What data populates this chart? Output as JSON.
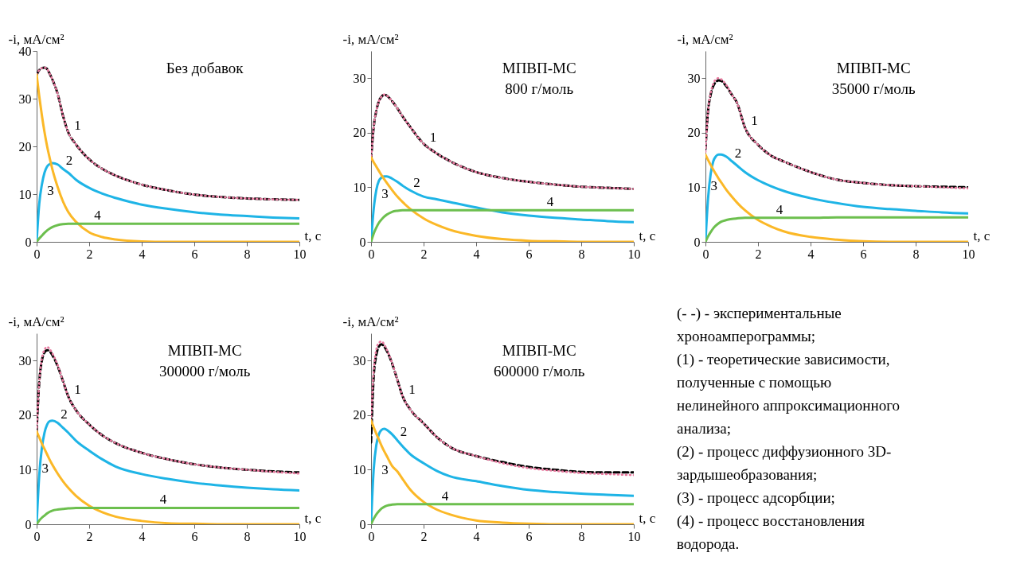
{
  "chart_data": [
    {
      "type": "line",
      "annotations": [
        "Без добавок"
      ],
      "xlabel": "t, с",
      "ylabel": "-i, мА/см²",
      "xlim": [
        0,
        10
      ],
      "xticks": [
        0,
        2,
        4,
        6,
        8,
        10
      ],
      "ylim": [
        0,
        40
      ],
      "yticks": [
        0,
        10,
        20,
        30,
        40
      ],
      "grid": false,
      "x": [
        0,
        0.1,
        0.2,
        0.3,
        0.4,
        0.5,
        0.6,
        0.8,
        1,
        1.2,
        1.5,
        2,
        2.5,
        3,
        4,
        5,
        6,
        7,
        8,
        9,
        10
      ],
      "series": [
        {
          "color": "#000000",
          "line_style": "dashed",
          "values": [
            35,
            36,
            36.4,
            36.5,
            36.2,
            35.2,
            34,
            31,
            26.5,
            23,
            20.4,
            17.3,
            15.3,
            13.9,
            12,
            10.8,
            9.9,
            9.4,
            9.1,
            8.9,
            8.8
          ]
        },
        {
          "name": "1",
          "color": "#e8799f",
          "line_style": "dotted",
          "values": [
            35,
            36,
            36.4,
            36.5,
            36.2,
            35.2,
            34,
            31,
            26.5,
            23,
            20.4,
            17.3,
            15.3,
            13.9,
            12,
            10.8,
            9.9,
            9.4,
            9.1,
            8.9,
            8.8
          ]
        },
        {
          "name": "2",
          "color": "#1eb4e6",
          "values": [
            0,
            8,
            12,
            14.5,
            15.8,
            16.3,
            16.5,
            16.2,
            15.3,
            14.5,
            13,
            11.3,
            10.1,
            9.2,
            7.8,
            6.9,
            6.2,
            5.7,
            5.4,
            5.1,
            4.9
          ]
        },
        {
          "name": "3",
          "color": "#fbb827",
          "values": [
            35,
            30.5,
            26.5,
            23,
            20,
            17.5,
            15.2,
            11.5,
            8.5,
            6.3,
            4.2,
            2,
            1,
            0.5,
            0.1,
            0,
            0,
            0,
            0,
            0,
            0
          ]
        },
        {
          "name": "4",
          "color": "#6cbf4e",
          "values": [
            0,
            0.7,
            1.3,
            1.9,
            2.4,
            2.8,
            3.1,
            3.5,
            3.7,
            3.8,
            3.8,
            3.8,
            3.8,
            3.8,
            3.8,
            3.8,
            3.8,
            3.8,
            3.8,
            3.8,
            3.8
          ]
        }
      ]
    },
    {
      "type": "line",
      "annotations": [
        "МПВП-МС",
        "800 г/моль"
      ],
      "xlabel": "t, с",
      "ylabel": "-i, мА/см²",
      "xlim": [
        0,
        10
      ],
      "xticks": [
        0,
        2,
        4,
        6,
        8,
        10
      ],
      "ylim": [
        0,
        35
      ],
      "yticks": [
        0,
        10,
        20,
        30
      ],
      "grid": false,
      "x": [
        0,
        0.1,
        0.2,
        0.3,
        0.4,
        0.5,
        0.6,
        0.8,
        1,
        1.2,
        1.5,
        2,
        2.5,
        3,
        4,
        5,
        6,
        7,
        8,
        9,
        10
      ],
      "series": [
        {
          "color": "#000000",
          "line_style": "dashed",
          "values": [
            15,
            21,
            24,
            25.8,
            26.6,
            27,
            26.8,
            25.8,
            24.5,
            23,
            21,
            18,
            16.2,
            14.8,
            12.8,
            11.7,
            11,
            10.5,
            10.1,
            9.9,
            9.7
          ]
        },
        {
          "name": "1",
          "color": "#e8799f",
          "line_style": "dotted",
          "values": [
            15,
            21,
            24,
            25.8,
            26.6,
            27,
            26.8,
            25.8,
            24.5,
            23,
            21,
            18,
            16.2,
            14.8,
            12.8,
            11.7,
            11,
            10.5,
            10.1,
            9.9,
            9.7
          ]
        },
        {
          "name": "2",
          "color": "#1eb4e6",
          "values": [
            0,
            6,
            9.5,
            11.2,
            11.8,
            12,
            12,
            11.6,
            11,
            10.3,
            9.4,
            8.3,
            7.8,
            7.3,
            6.3,
            5.4,
            4.8,
            4.4,
            4.1,
            3.8,
            3.6
          ]
        },
        {
          "name": "3",
          "color": "#fbb827",
          "values": [
            15.5,
            14.6,
            13.8,
            13,
            12.2,
            11.5,
            10.8,
            9.5,
            8.3,
            7.3,
            6,
            4.3,
            3.1,
            2.2,
            1.1,
            0.5,
            0.2,
            0.1,
            0,
            0,
            0
          ]
        },
        {
          "name": "4",
          "color": "#6cbf4e",
          "values": [
            0,
            1.5,
            2.6,
            3.5,
            4.1,
            4.6,
            5,
            5.5,
            5.7,
            5.8,
            5.8,
            5.8,
            5.8,
            5.8,
            5.8,
            5.8,
            5.8,
            5.8,
            5.8,
            5.8,
            5.8
          ]
        }
      ]
    },
    {
      "type": "line",
      "annotations": [
        "МПВП-МС",
        "35000 г/моль"
      ],
      "xlabel": "t, с",
      "ylabel": "-i, мА/см²",
      "xlim": [
        0,
        10
      ],
      "xticks": [
        0,
        2,
        4,
        6,
        8,
        10
      ],
      "ylim": [
        0,
        35
      ],
      "yticks": [
        0,
        10,
        20,
        30
      ],
      "grid": false,
      "x": [
        0,
        0.1,
        0.2,
        0.3,
        0.4,
        0.5,
        0.6,
        0.8,
        1,
        1.2,
        1.5,
        2,
        2.5,
        3,
        4,
        5,
        6,
        7,
        8,
        9,
        10
      ],
      "series": [
        {
          "color": "#000000",
          "line_style": "dashed",
          "values": [
            17,
            24,
            27,
            28.6,
            29.3,
            29.6,
            29.5,
            28.5,
            27,
            25.5,
            21,
            17.8,
            15.8,
            14.7,
            12.8,
            11.4,
            10.8,
            10.4,
            10.2,
            10.1,
            10
          ]
        },
        {
          "name": "1",
          "color": "#e8799f",
          "line_style": "dotted",
          "values": [
            16.5,
            24,
            27.3,
            29,
            29.8,
            30,
            29.8,
            28.7,
            27,
            25.5,
            21,
            17.8,
            15.8,
            14.7,
            12.8,
            11.4,
            10.8,
            10.4,
            10.2,
            10,
            9.8
          ]
        },
        {
          "name": "2",
          "color": "#1eb4e6",
          "values": [
            0,
            8,
            12.5,
            14.8,
            15.7,
            16,
            16,
            15.6,
            14.8,
            14,
            12.8,
            11.3,
            10.2,
            9.3,
            8,
            7.1,
            6.4,
            6,
            5.7,
            5.4,
            5.2
          ]
        },
        {
          "name": "3",
          "color": "#fbb827",
          "values": [
            16,
            15,
            14.1,
            13.2,
            12.4,
            11.6,
            10.9,
            9.5,
            8.3,
            7.2,
            5.8,
            4,
            2.8,
            1.9,
            0.9,
            0.4,
            0.1,
            0,
            0,
            0,
            0
          ]
        },
        {
          "name": "4",
          "color": "#6cbf4e",
          "values": [
            0,
            1,
            1.8,
            2.5,
            3,
            3.4,
            3.7,
            4,
            4.2,
            4.3,
            4.4,
            4.4,
            4.4,
            4.4,
            4.4,
            4.5,
            4.5,
            4.5,
            4.5,
            4.5,
            4.5
          ]
        }
      ]
    },
    {
      "type": "line",
      "annotations": [
        "МПВП-МС",
        "300000 г/моль"
      ],
      "xlabel": "t, с",
      "ylabel": "-i, мА/см²",
      "xlim": [
        0,
        10
      ],
      "xticks": [
        0,
        2,
        4,
        6,
        8,
        10
      ],
      "ylim": [
        0,
        35
      ],
      "yticks": [
        0,
        10,
        20,
        30
      ],
      "grid": false,
      "x": [
        0,
        0.1,
        0.2,
        0.3,
        0.4,
        0.5,
        0.6,
        0.8,
        1,
        1.2,
        1.5,
        2,
        2.5,
        3,
        4,
        5,
        6,
        7,
        8,
        9,
        10
      ],
      "series": [
        {
          "color": "#000000",
          "line_style": "dashed",
          "values": [
            17,
            26,
            30,
            31.5,
            31.9,
            31.7,
            31,
            29,
            26.3,
            23.5,
            20.9,
            18.3,
            16.3,
            14.9,
            13.1,
            11.9,
            11,
            10.4,
            10,
            9.7,
            9.5
          ]
        },
        {
          "name": "1",
          "color": "#e8799f",
          "line_style": "dotted",
          "values": [
            17,
            26,
            30.3,
            32,
            32.5,
            32.1,
            31.3,
            29.2,
            26.3,
            23.5,
            20.9,
            18.3,
            16.3,
            14.9,
            13.1,
            11.9,
            11,
            10.4,
            10,
            9.6,
            9.3
          ]
        },
        {
          "name": "2",
          "color": "#1eb4e6",
          "values": [
            0,
            9,
            14,
            16.8,
            18.3,
            18.9,
            19,
            18.6,
            17.7,
            16.8,
            15.3,
            13.5,
            11.9,
            10.6,
            9.2,
            8.3,
            7.6,
            7.1,
            6.7,
            6.4,
            6.2
          ]
        },
        {
          "name": "3",
          "color": "#fbb827",
          "values": [
            17,
            15.9,
            14.8,
            13.8,
            12.8,
            11.8,
            10.9,
            9.3,
            7.9,
            6.7,
            5.2,
            3.4,
            2.2,
            1.4,
            0.6,
            0.2,
            0.1,
            0,
            0,
            0,
            0
          ]
        },
        {
          "name": "4",
          "color": "#6cbf4e",
          "values": [
            0,
            0.7,
            1.2,
            1.6,
            2,
            2.3,
            2.5,
            2.7,
            2.8,
            2.9,
            3,
            3,
            3,
            3,
            3,
            3,
            3,
            3,
            3,
            3,
            3
          ]
        }
      ]
    },
    {
      "type": "line",
      "annotations": [
        "МПВП-МС",
        "600000 г/моль"
      ],
      "xlabel": "t, с",
      "ylabel": "-i, мА/см²",
      "xlim": [
        0,
        10
      ],
      "xticks": [
        0,
        2,
        4,
        6,
        8,
        10
      ],
      "ylim": [
        0,
        35
      ],
      "yticks": [
        0,
        10,
        20,
        30
      ],
      "grid": false,
      "x": [
        0,
        0.1,
        0.2,
        0.3,
        0.4,
        0.5,
        0.6,
        0.8,
        1,
        1.2,
        1.5,
        2,
        2.5,
        3,
        4,
        5,
        6,
        7,
        8,
        9,
        10
      ],
      "series": [
        {
          "color": "#000000",
          "line_style": "dashed",
          "values": [
            15,
            27,
            31,
            32.6,
            33,
            32.6,
            31.8,
            29.5,
            26.5,
            23.5,
            21,
            18.5,
            16,
            14.2,
            12.5,
            11.4,
            10.5,
            10,
            9.6,
            9.5,
            9.5
          ]
        },
        {
          "name": "1",
          "color": "#e8799f",
          "line_style": "dotted",
          "values": [
            19,
            28,
            32,
            33.3,
            33.5,
            33,
            32,
            29.6,
            26.5,
            23.5,
            21,
            18.5,
            16,
            14.2,
            12.5,
            11.2,
            10.3,
            9.8,
            9.4,
            9.2,
            9
          ]
        },
        {
          "name": "2",
          "color": "#1eb4e6",
          "values": [
            0,
            10,
            14.5,
            16.5,
            17.3,
            17.5,
            17.3,
            16.5,
            15.4,
            14.3,
            12.8,
            11.2,
            9.8,
            8.8,
            7.9,
            7,
            6.3,
            5.9,
            5.6,
            5.4,
            5.2
          ]
        },
        {
          "name": "3",
          "color": "#fbb827",
          "values": [
            19,
            17.8,
            16.6,
            15.5,
            14.4,
            13.4,
            12.5,
            10.7,
            9.7,
            8.3,
            6.3,
            4.1,
            2.7,
            1.8,
            0.7,
            0.3,
            0.1,
            0,
            0,
            0,
            0
          ]
        },
        {
          "name": "4",
          "color": "#6cbf4e",
          "values": [
            0,
            1,
            1.8,
            2.4,
            2.9,
            3.2,
            3.4,
            3.6,
            3.7,
            3.7,
            3.7,
            3.7,
            3.7,
            3.7,
            3.7,
            3.7,
            3.7,
            3.7,
            3.7,
            3.7,
            3.7
          ]
        }
      ]
    },
    {
      "type": "other",
      "annotations": [
        "(- -) - экспериментальные",
        "хроноамперограммы;",
        "(1) - теоретические зависимости,",
        "полученные с помощью",
        "нелинейного аппроксимационного",
        "анализа;",
        "(2) - процесс диффузионного 3D-",
        "зардышеобразования;",
        "(3) - процесс адсорбции;",
        "(4) - процесс восстановления",
        "водорода."
      ]
    }
  ]
}
